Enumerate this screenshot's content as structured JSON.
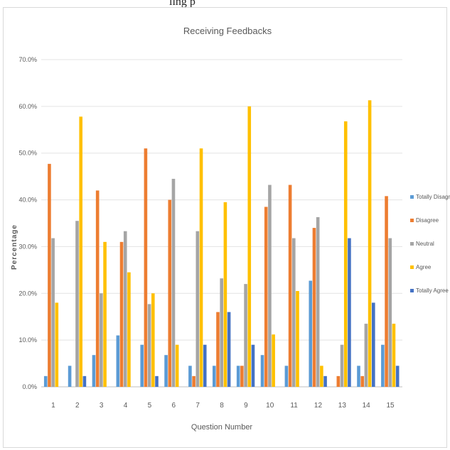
{
  "caption_fragment": "ling p",
  "chart_data": {
    "type": "bar",
    "title": "Receiving Feedbacks",
    "xlabel": "Question Number",
    "ylabel": "Percentage",
    "ylim": [
      0,
      70
    ],
    "yticks": [
      "0.0%",
      "10.0%",
      "20.0%",
      "30.0%",
      "40.0%",
      "50.0%",
      "60.0%",
      "70.0%"
    ],
    "grid": true,
    "legend_position": "right",
    "categories": [
      "1",
      "2",
      "3",
      "4",
      "5",
      "6",
      "7",
      "8",
      "9",
      "10",
      "11",
      "12",
      "13",
      "14",
      "15"
    ],
    "series": [
      {
        "name": "Totally Disagree",
        "color": "#5b9bd5",
        "values": [
          2.3,
          4.5,
          6.8,
          11.0,
          9.0,
          6.8,
          4.5,
          4.5,
          4.5,
          6.8,
          4.5,
          22.7,
          0,
          4.5,
          9.0
        ]
      },
      {
        "name": "Disagree",
        "color": "#ed7d31",
        "values": [
          47.7,
          0,
          42.0,
          31.0,
          51.0,
          40.0,
          2.3,
          16.0,
          4.5,
          38.5,
          43.2,
          34.0,
          2.3,
          2.3,
          40.8
        ]
      },
      {
        "name": "Neutral",
        "color": "#a5a5a5",
        "values": [
          31.8,
          35.5,
          20.0,
          33.3,
          17.7,
          44.5,
          33.3,
          23.2,
          22.0,
          43.2,
          31.8,
          36.3,
          9.0,
          13.5,
          31.8
        ]
      },
      {
        "name": "Agree",
        "color": "#ffc000",
        "values": [
          18.0,
          57.8,
          31.0,
          24.5,
          20.0,
          9.0,
          51.0,
          39.5,
          60.0,
          11.2,
          20.5,
          4.5,
          56.8,
          61.3,
          13.5
        ]
      },
      {
        "name": "Totally Agree",
        "color": "#4472c4",
        "values": [
          0,
          2.3,
          0,
          0,
          2.3,
          0,
          9.0,
          16.0,
          9.0,
          0,
          0,
          2.3,
          31.8,
          18.0,
          4.5
        ]
      }
    ]
  }
}
